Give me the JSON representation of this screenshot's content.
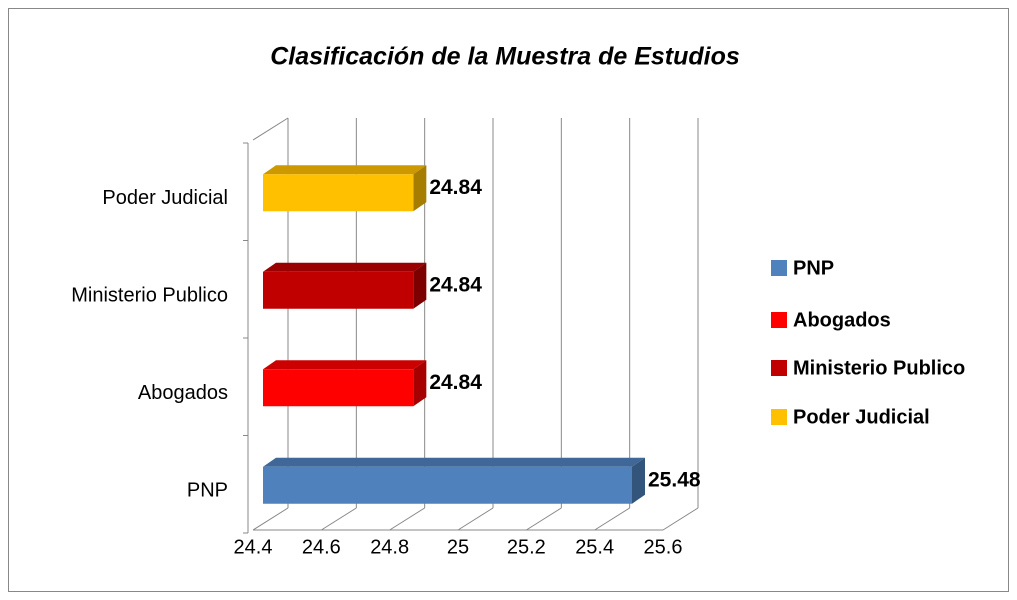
{
  "chart_data": {
    "type": "bar3d_horizontal",
    "title": "Clasificación de la Muestra de Estudios",
    "categories": [
      "PNP",
      "Abogados",
      "Ministerio Publico",
      "Poder Judicial"
    ],
    "values": [
      25.48,
      24.84,
      24.84,
      24.84
    ],
    "colors": [
      "#4f81bd",
      "#ff0000",
      "#c00000",
      "#ffc000"
    ],
    "xlim": [
      24.4,
      25.6
    ],
    "xticks": [
      24.4,
      24.6,
      24.8,
      25,
      25.2,
      25.4,
      25.6
    ],
    "grid": true,
    "legend": "right"
  }
}
